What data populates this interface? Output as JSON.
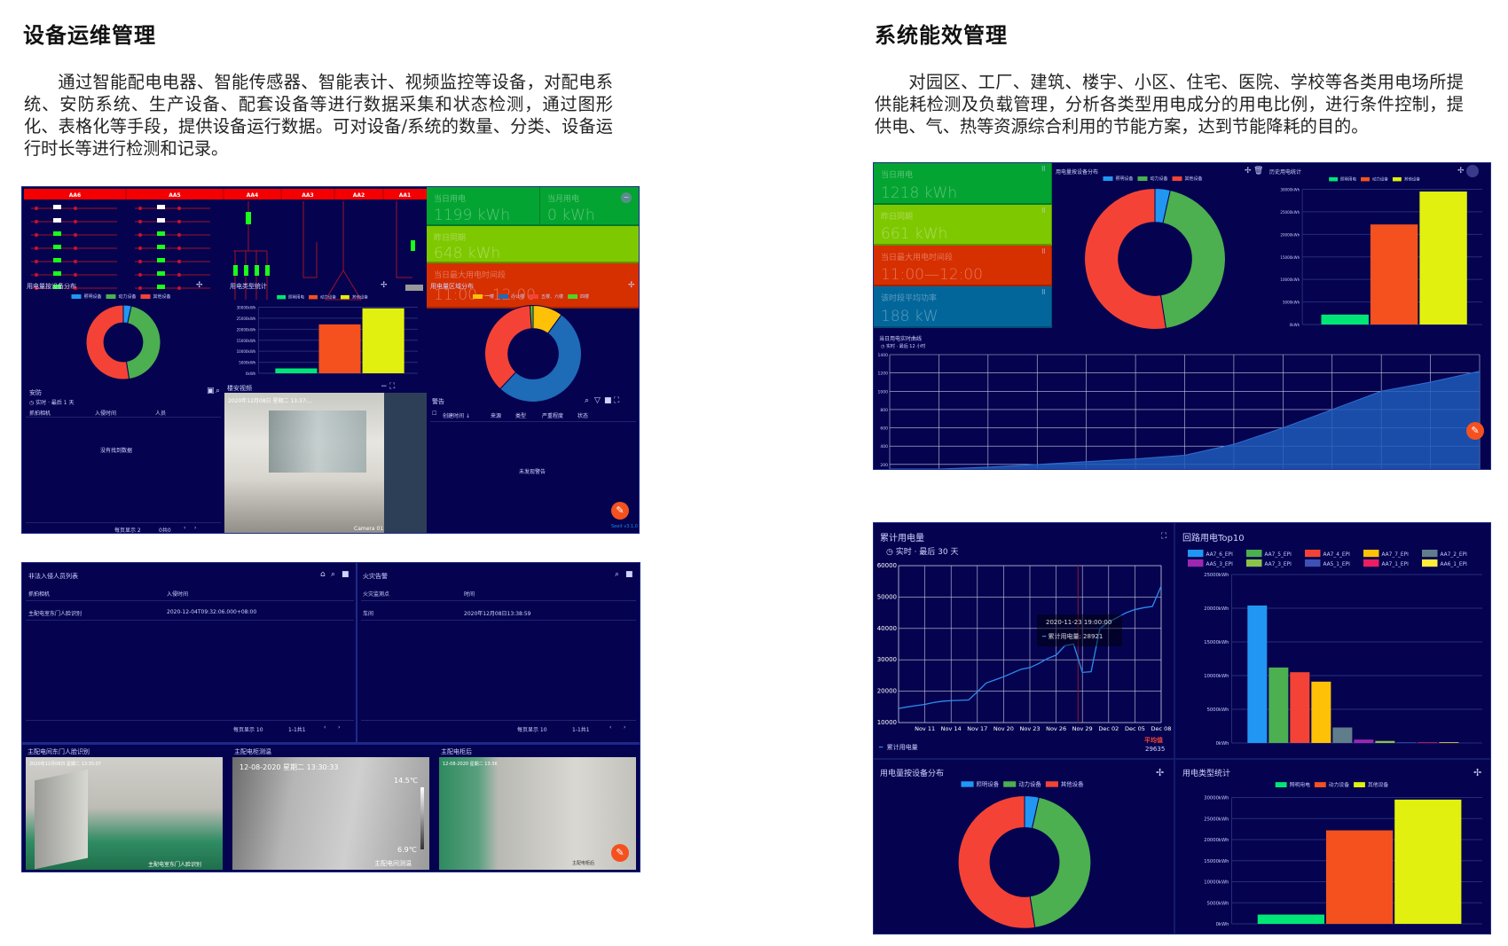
{
  "left": {
    "title": "设备运维管理",
    "paragraph": "通过智能配电电器、智能传感器、智能表计、视频监控等设备，对配电系统、安防系统、生产设备、配套设备等进行数据采集和状态检测，通过图形化、表格化等手段，提供设备运行数据。可对设备/系统的数量、分类、设备运行时长等进行检测和记录。",
    "dash1": {
      "busbars": [
        "AA6",
        "AA5",
        "AA4",
        "AA3",
        "AA2",
        "AA1"
      ],
      "tiles": [
        {
          "label": "当日用电",
          "value": "1199 kWh",
          "color": "#04a432"
        },
        {
          "label": "当月用电",
          "value": "0 kWh",
          "color": "#04a432"
        },
        {
          "label": "昨日同期",
          "value": "648 kWh",
          "color": "#7ec800"
        },
        {
          "label": "当日最大用电时间段",
          "value": "11:00—12:00",
          "color": "#d62f00"
        }
      ],
      "device_panel": {
        "title": "用电量按设备分布"
      },
      "type_panel": {
        "title": "用电类型统计"
      },
      "region_panel": {
        "title": "用电量区域分布"
      },
      "security": {
        "title": "安防",
        "subtitle": "实时 · 最后 1 天",
        "columns": [
          "抓拍相机",
          "入侵时间",
          "人员"
        ],
        "empty": "没有找到数据",
        "page_size_label": "每页显示 2",
        "range": "0共0"
      },
      "video": {
        "title": "楼安视频",
        "overlay": "2020年12月08日 星期二 13:37:...",
        "camera": "Camera 01"
      },
      "alerts": {
        "title": "警告",
        "columns": [
          "创建时间 ↓",
          "来源",
          "类型",
          "严重程度",
          "状态"
        ],
        "empty": "未发现警告",
        "version": "Seeit v3.1.0"
      }
    },
    "dash2": {
      "intrusion": {
        "title": "非法入侵人员列表",
        "columns": [
          "抓拍相机",
          "入侵时间"
        ],
        "rows": [
          [
            "主配电室东门人脸识别",
            "2020-12-04T09:32:06.000+08:00"
          ]
        ],
        "page_size_label": "每页显示 10",
        "range": "1-1共1"
      },
      "fire": {
        "title": "火灾告警",
        "columns": [
          "火灾监测点",
          "时间"
        ],
        "rows": [
          [
            "车间",
            "2020年12月08日13:38:59"
          ]
        ],
        "page_size_label": "每页显示 10",
        "range": "1-1共1"
      },
      "cameras": [
        {
          "title": "主配电间东门人脸识别",
          "overlay": "2020年12月08日 星期二 13:35:07",
          "caption": "主配电室东门人脸识别"
        },
        {
          "title": "主配电柜测温",
          "overlay": "12-08-2020 星期二 13:30:33",
          "caption": "主配电间测温",
          "temp_high": "14.5℃",
          "temp_low": "6.9℃"
        },
        {
          "title": "主配电柜后",
          "overlay": "12-08-2020 星期二 13:36",
          "caption": "主配电柜后"
        }
      ]
    }
  },
  "right": {
    "title": "系统能效管理",
    "paragraph": "对园区、工厂、建筑、楼宇、小区、住宅、医院、学校等各类用电场所提供能耗检测及负载管理，分析各类型用电成分的用电比例，进行条件控制，提供电、气、热等资源综合利用的节能方案，达到节能降耗的目的。",
    "dash1": {
      "tiles": [
        {
          "label": "当日用电",
          "value": "1218 kWh",
          "color": "#04a432"
        },
        {
          "label": "昨日同期",
          "value": "661 kWh",
          "color": "#7ec800"
        },
        {
          "label": "当日最大用电时间段",
          "value": "11:00—12:00",
          "color": "#d62f00"
        },
        {
          "label": "该时段平均功率",
          "value": "188 kW",
          "color": "#03669a"
        }
      ],
      "device_panel": {
        "title": "用电量按设备分布"
      },
      "history_panel": {
        "title": "历史用电统计"
      },
      "realtime": {
        "title": "当日用电实时曲线",
        "subtitle": "实时 · 最后 12 小时"
      }
    },
    "dash2": {
      "cumulative": {
        "title": "累计用电量",
        "subtitle": "实时 · 最后 30 天",
        "tooltip_time": "2020-11-23 19:00:00",
        "tooltip_label": "累计用电量",
        "tooltip_value": "28921",
        "avg_label": "平均值",
        "avg_value": "29635",
        "legend": "累计用电量"
      },
      "top10": {
        "title": "回路用电Top10"
      },
      "device_panel": {
        "title": "用电量按设备分布"
      },
      "type_panel": {
        "title": "用电类型统计"
      }
    }
  },
  "chart_data": [
    {
      "id": "device_donut",
      "type": "pie",
      "donut": true,
      "categories": [
        "照明设备",
        "动力设备",
        "其他设备"
      ],
      "values": [
        3.5,
        44,
        52.5
      ],
      "colors": [
        "#2196f3",
        "#4caf50",
        "#f44336"
      ],
      "legend": "top"
    },
    {
      "id": "type_bar",
      "type": "bar",
      "categories": [
        "照明用电",
        "动力设备",
        "其他设备"
      ],
      "values": [
        2200,
        22200,
        29500
      ],
      "colors": [
        "#00e676",
        "#f4511e",
        "#e2f00f"
      ],
      "ylim": [
        0,
        30000
      ],
      "yticks": [
        "0kWh",
        "5000kWh",
        "10000kWh",
        "15000kWh",
        "20000kWh",
        "25000kWh",
        "30000kWh"
      ],
      "grid": true,
      "legend": "top"
    },
    {
      "id": "region_donut",
      "type": "pie",
      "donut": true,
      "categories": [
        "一楼",
        "办公楼",
        "五楼、六楼",
        "四楼"
      ],
      "values": [
        10,
        52,
        37,
        1
      ],
      "colors": [
        "#ffc107",
        "#1e6bb8",
        "#f44336",
        "#52d321"
      ],
      "legend": "top"
    },
    {
      "id": "realtime_area",
      "type": "area",
      "values": [
        100,
        140,
        170,
        200,
        230,
        260,
        300,
        420,
        600,
        800,
        1000,
        1100,
        1218
      ],
      "ylim": [
        150,
        1400
      ],
      "yticks": [
        "200",
        "400",
        "600",
        "800",
        "1000",
        "1200",
        "1400"
      ],
      "grid": true,
      "color": "#1e5bb8"
    },
    {
      "id": "cumulative_line",
      "type": "line",
      "x": [
        "Nov 08",
        "Nov 09",
        "Nov 10",
        "Nov 11",
        "Nov 12",
        "Nov 13",
        "Nov 14",
        "Nov 15",
        "Nov 16",
        "Nov 17",
        "Nov 18",
        "Nov 19",
        "Nov 20",
        "Nov 21",
        "Nov 22",
        "Nov 23",
        "Nov 24",
        "Nov 25",
        "Nov 26",
        "Nov 27",
        "Nov 28",
        "Nov 29",
        "Nov 30",
        "Dec 01",
        "Dec 02",
        "Dec 03",
        "Dec 04",
        "Dec 05",
        "Dec 06",
        "Dec 07",
        "Dec 08"
      ],
      "values": [
        14500,
        15000,
        15400,
        15800,
        16400,
        16800,
        17000,
        17100,
        17200,
        19800,
        22600,
        23600,
        24600,
        25800,
        27000,
        27500,
        28800,
        30400,
        31500,
        34500,
        35000,
        26000,
        26200,
        40000,
        42000,
        43500,
        45000,
        46000,
        46600,
        47000,
        53500
      ],
      "ylim": [
        10000,
        60000
      ],
      "yticks": [
        "10000",
        "20000",
        "30000",
        "40000",
        "50000",
        "60000"
      ],
      "xticks": [
        "Nov 11",
        "Nov 14",
        "Nov 17",
        "Nov 20",
        "Nov 23",
        "Nov 26",
        "Nov 29",
        "Dec 02",
        "Dec 05",
        "Dec 08"
      ],
      "grid": true,
      "color": "#2d8cf0",
      "legend": "bottom"
    },
    {
      "id": "top10_bar",
      "type": "bar",
      "categories": [
        "AA7_6_EPI",
        "AA7_5_EPI",
        "AA7_4_EPI",
        "AA7_7_EPI",
        "AA7_2_EPI",
        "AA5_3_EPI",
        "AA7_3_EPI",
        "AA5_1_EPI",
        "AA7_1_EPI",
        "AA6_1_EPI"
      ],
      "values": [
        20400,
        11200,
        10500,
        9100,
        2300,
        500,
        300,
        100,
        100,
        100
      ],
      "colors": [
        "#2196f3",
        "#4caf50",
        "#f44336",
        "#ffc107",
        "#607d8b",
        "#9c27b0",
        "#8bc34a",
        "#3f51b5",
        "#e91e63",
        "#ffeb3b"
      ],
      "ylim": [
        0,
        25000
      ],
      "yticks": [
        "0kWh",
        "5000kWh",
        "10000kWh",
        "15000kWh",
        "20000kWh",
        "25000kWh"
      ],
      "grid": true,
      "legend": "top"
    }
  ]
}
